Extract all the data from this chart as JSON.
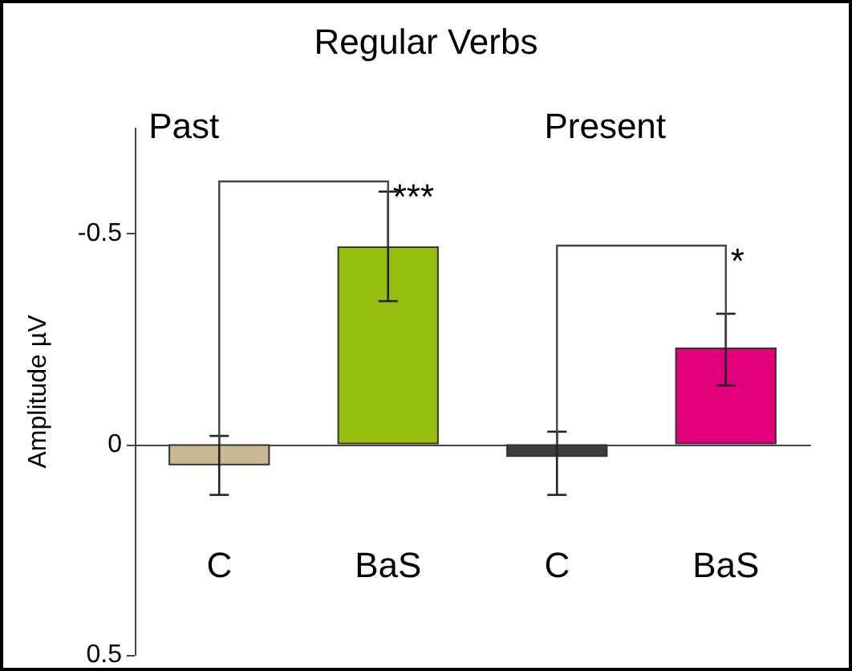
{
  "chart_data": {
    "type": "bar",
    "title": "Regular Verbs",
    "ylabel": "Amplitude µV",
    "categories": [
      "C",
      "BaS",
      "C",
      "BaS"
    ],
    "values": [
      0.05,
      -0.47,
      0.03,
      -0.23
    ],
    "colors": [
      "#cbb994",
      "#96be0e",
      "#3c3c3c",
      "#e2007a"
    ],
    "errors": [
      [
        -0.02,
        0.12
      ],
      [
        -0.6,
        -0.34
      ],
      [
        -0.03,
        0.12
      ],
      [
        -0.31,
        -0.14
      ]
    ],
    "ylim": [
      0.5,
      -0.75
    ],
    "yticks": [
      -0.5,
      0,
      0.5
    ],
    "annotations": [
      "Past",
      "Present",
      {
        "text": "***",
        "x": "BaS",
        "y": -0.47
      },
      "*"
    ]
  }
}
